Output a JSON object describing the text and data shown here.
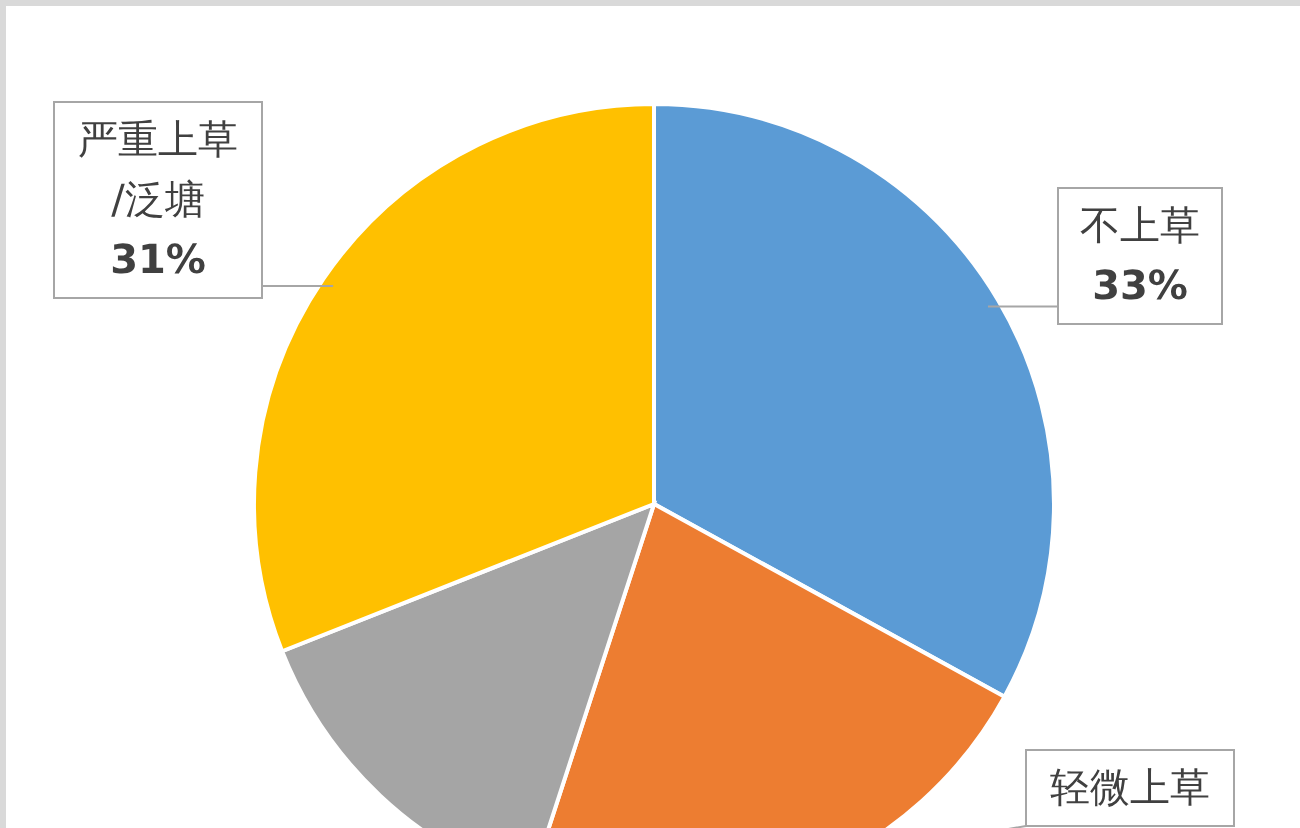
{
  "chart_data": {
    "type": "pie",
    "categories": [
      "不上草",
      "轻微上草",
      null,
      "严重上草/泛塘"
    ],
    "values": [
      33,
      22,
      14,
      31
    ],
    "colors": [
      "#5b9bd5",
      "#ed7d31",
      "#a5a5a5",
      "#ffc000"
    ],
    "value_labels": [
      "33%",
      null,
      null,
      "31%"
    ]
  }
}
